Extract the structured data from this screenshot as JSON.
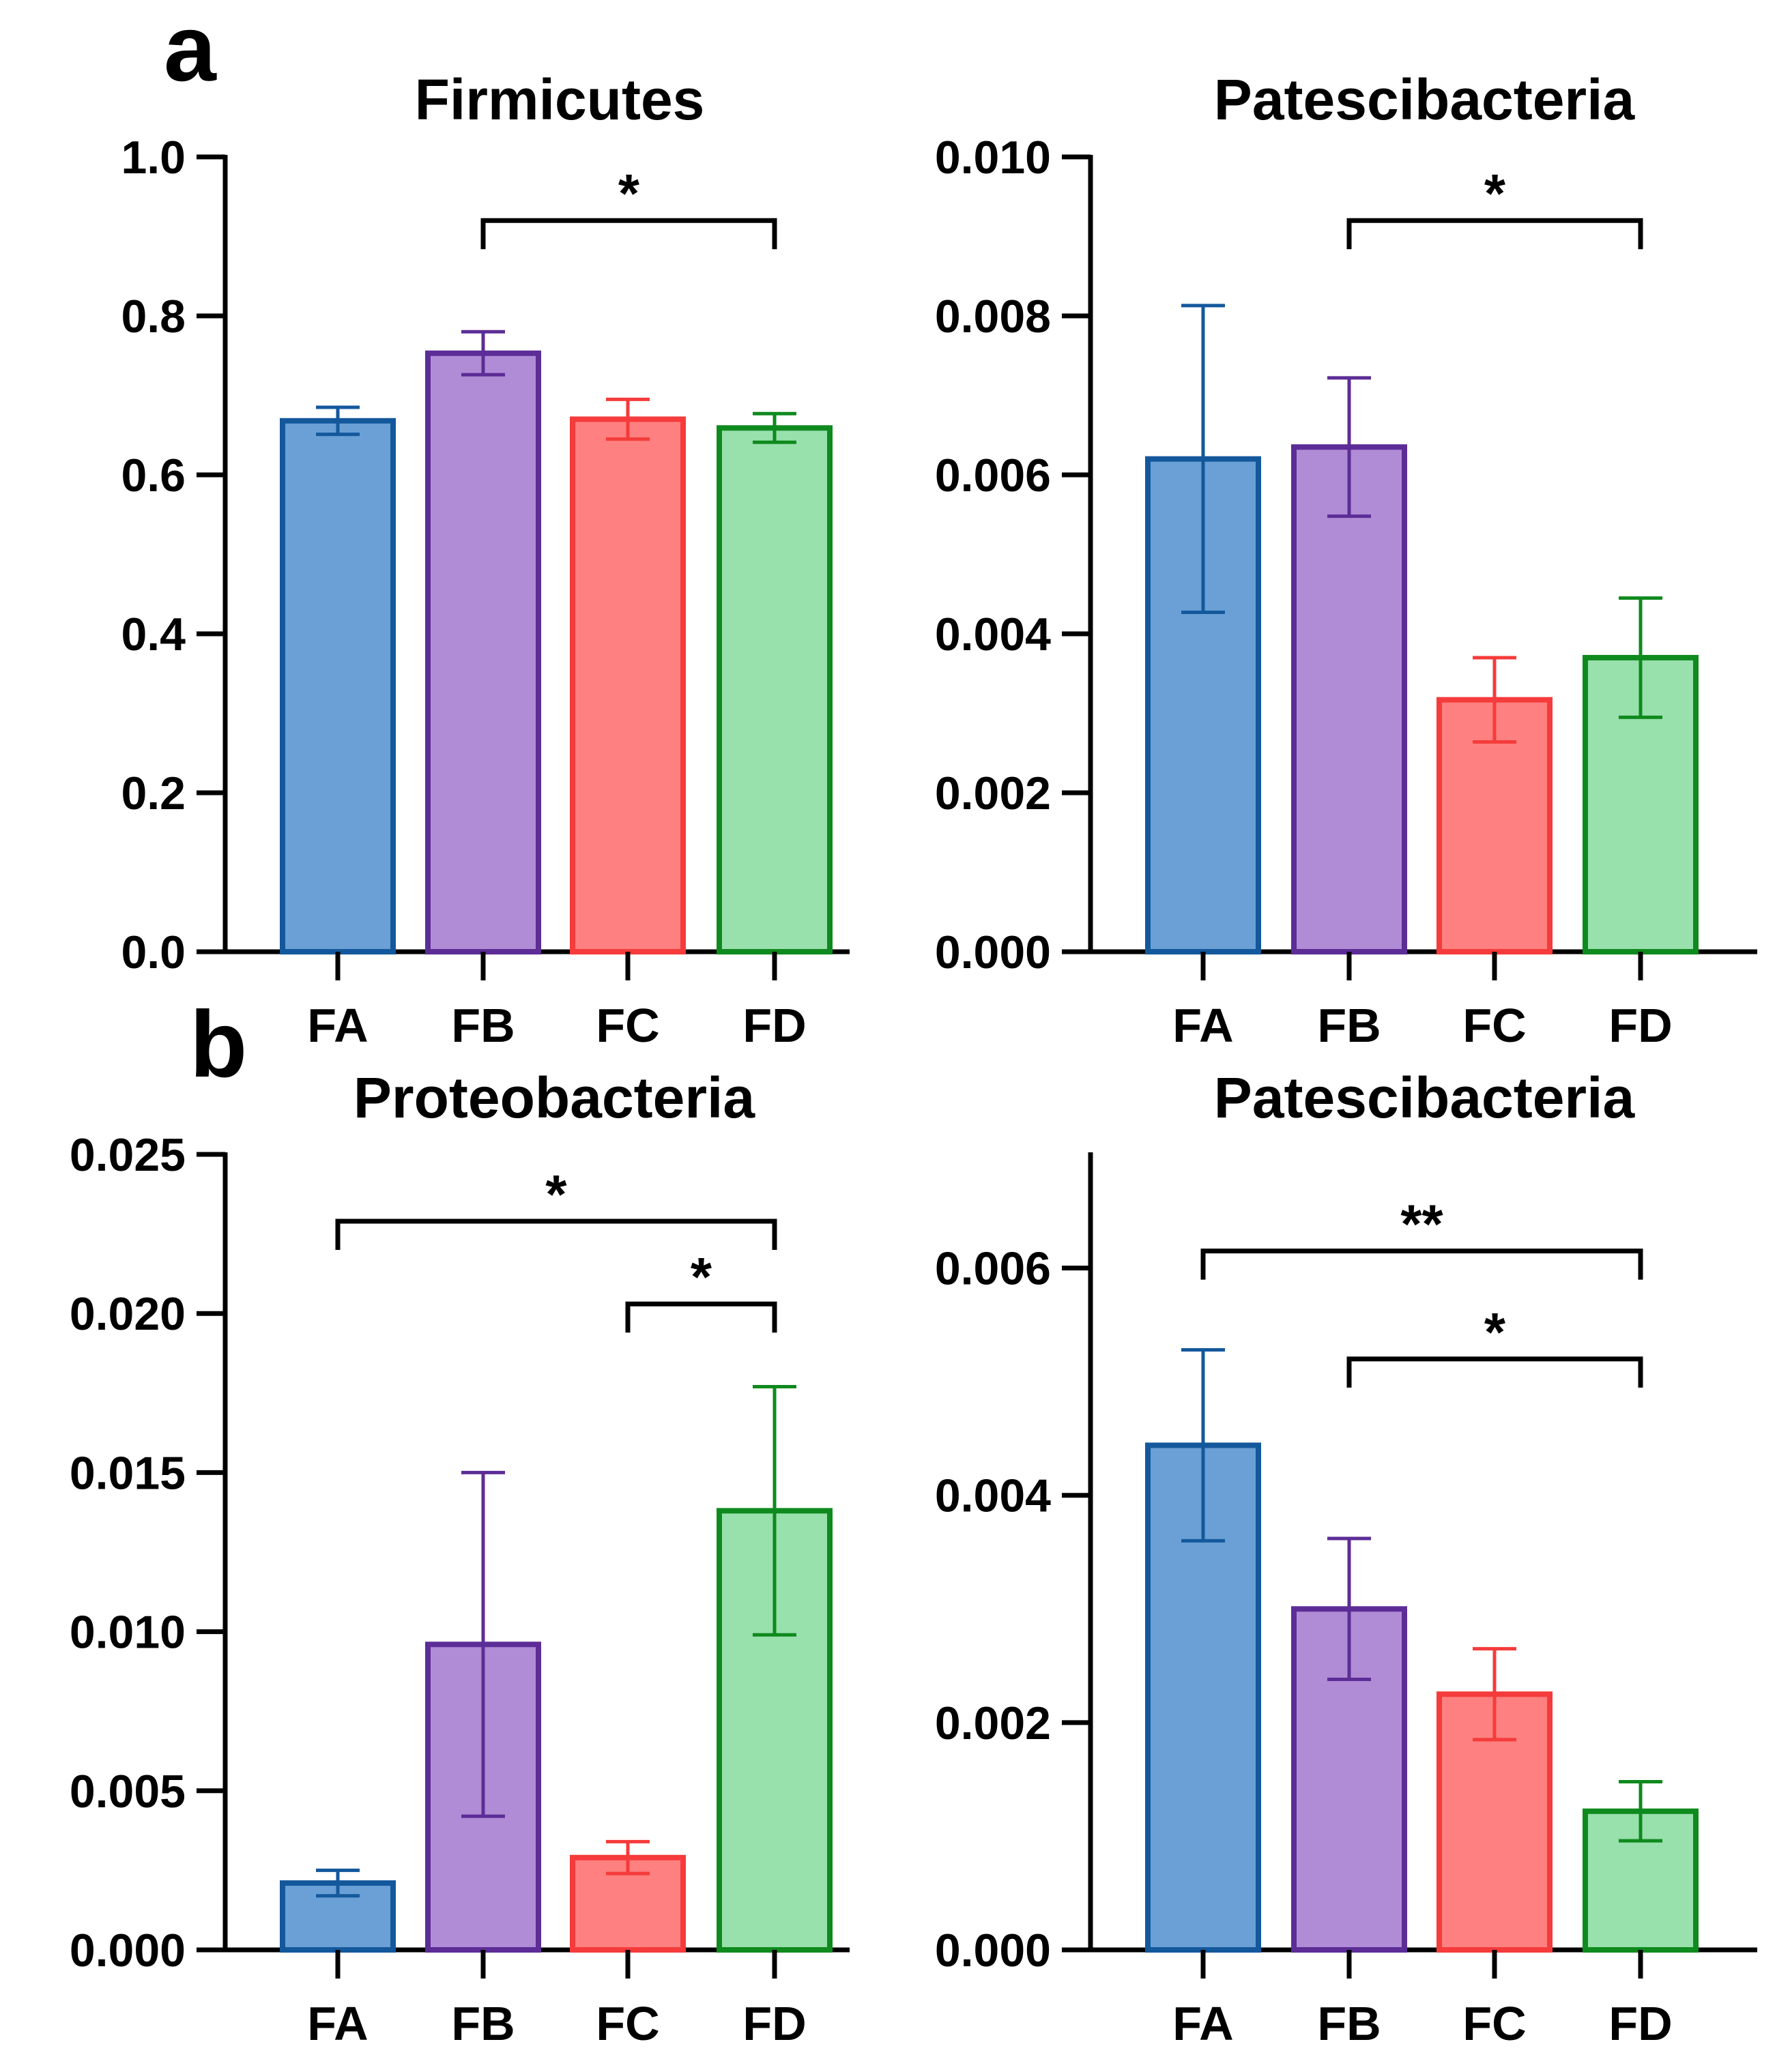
{
  "panel_letters": [
    "a",
    "b"
  ],
  "colors": {
    "FA": {
      "fill": "#6aa0d5",
      "stroke": "#14589c"
    },
    "FB": {
      "fill": "#b08cd6",
      "stroke": "#5c2d96"
    },
    "FC": {
      "fill": "#ff8080",
      "stroke": "#f53b3b"
    },
    "FD": {
      "fill": "#98e0ac",
      "stroke": "#0f8a1e"
    }
  },
  "chart_data": [
    {
      "panel": "a",
      "type": "bar",
      "title": "Firmicutes",
      "categories": [
        "FA",
        "FB",
        "FC",
        "FD"
      ],
      "values": [
        0.668,
        0.753,
        0.67,
        0.659
      ],
      "errors": [
        0.017,
        0.027,
        0.025,
        0.018
      ],
      "ylim": [
        0,
        1.0
      ],
      "yticks": [
        0.0,
        0.2,
        0.4,
        0.6,
        0.8,
        1.0
      ],
      "ytick_labels": [
        "0.0",
        "0.2",
        "0.4",
        "0.6",
        "0.8",
        "1.0"
      ],
      "significance": [
        {
          "from": "FB",
          "to": "FD",
          "label": "*",
          "level": 0.92
        }
      ]
    },
    {
      "panel": "a",
      "type": "bar",
      "title": "Patescibacteria",
      "categories": [
        "FA",
        "FB",
        "FC",
        "FD"
      ],
      "values": [
        0.0062,
        0.00635,
        0.00317,
        0.0037
      ],
      "errors": [
        0.00193,
        0.00087,
        0.00053,
        0.00075
      ],
      "ylim": [
        0,
        0.01
      ],
      "yticks": [
        0.0,
        0.002,
        0.004,
        0.006,
        0.008,
        0.01
      ],
      "ytick_labels": [
        "0.000",
        "0.002",
        "0.004",
        "0.006",
        "0.008",
        "0.010"
      ],
      "significance": [
        {
          "from": "FB",
          "to": "FD",
          "label": "*",
          "level": 0.0092
        }
      ]
    },
    {
      "panel": "b",
      "type": "bar",
      "title": "Proteobacteria",
      "categories": [
        "FA",
        "FB",
        "FC",
        "FD"
      ],
      "values": [
        0.0021,
        0.0096,
        0.0029,
        0.0138
      ],
      "errors": [
        0.0004,
        0.0054,
        0.0005,
        0.0039
      ],
      "ylim": [
        0,
        0.025
      ],
      "yticks": [
        0.0,
        0.005,
        0.01,
        0.015,
        0.02,
        0.025
      ],
      "ytick_labels": [
        "0.000",
        "0.005",
        "0.010",
        "0.015",
        "0.020",
        "0.025"
      ],
      "significance": [
        {
          "from": "FA",
          "to": "FD",
          "label": "*",
          "level": 0.0229
        },
        {
          "from": "FC",
          "to": "FD",
          "label": "*",
          "level": 0.0203
        }
      ]
    },
    {
      "panel": "b",
      "type": "bar",
      "title": "Patescibacteria",
      "categories": [
        "FA",
        "FB",
        "FC",
        "FD"
      ],
      "values": [
        0.00444,
        0.003,
        0.00225,
        0.00122
      ],
      "errors": [
        0.00084,
        0.00062,
        0.0004,
        0.00026
      ],
      "ylim": [
        0,
        0.007
      ],
      "yticks": [
        0.0,
        0.002,
        0.004,
        0.006
      ],
      "ytick_labels": [
        "0.000",
        "0.002",
        "0.004",
        "0.006"
      ],
      "significance": [
        {
          "from": "FA",
          "to": "FD",
          "label": "**",
          "level": 0.00615
        },
        {
          "from": "FB",
          "to": "FD",
          "label": "*",
          "level": 0.0052
        }
      ]
    }
  ]
}
